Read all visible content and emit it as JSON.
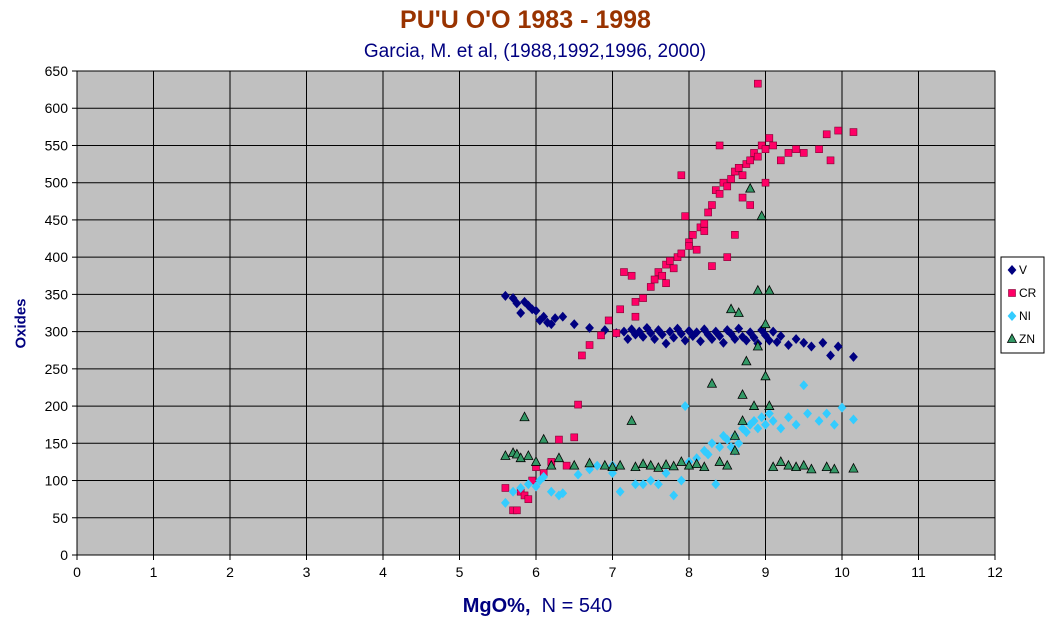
{
  "chart_data": {
    "type": "scatter",
    "title": "PU'U O'O 1983 - 1998",
    "subtitle": "Garcia, M. et al, (1988,1992,1996, 2000)",
    "xlabel_main": "MgO%,",
    "xlabel_note": "N = 540",
    "ylabel": "Oxides",
    "xlim": [
      0,
      12
    ],
    "ylim": [
      0,
      650
    ],
    "x_ticks": [
      0,
      1,
      2,
      3,
      4,
      5,
      6,
      7,
      8,
      9,
      10,
      11,
      12
    ],
    "y_ticks": [
      0,
      50,
      100,
      150,
      200,
      250,
      300,
      350,
      400,
      450,
      500,
      550,
      600,
      650
    ],
    "grid": true,
    "plot_background": "#c0c0c0",
    "legend_position": "right",
    "series": [
      {
        "name": "V",
        "marker": "diamond",
        "color": "#000080",
        "points": [
          [
            5.6,
            348
          ],
          [
            5.7,
            345
          ],
          [
            5.75,
            338
          ],
          [
            5.8,
            325
          ],
          [
            5.85,
            340
          ],
          [
            5.9,
            335
          ],
          [
            5.95,
            330
          ],
          [
            6.0,
            328
          ],
          [
            6.05,
            315
          ],
          [
            6.1,
            320
          ],
          [
            6.15,
            312
          ],
          [
            6.2,
            310
          ],
          [
            6.25,
            318
          ],
          [
            6.35,
            320
          ],
          [
            6.5,
            310
          ],
          [
            6.7,
            305
          ],
          [
            6.9,
            302
          ],
          [
            7.05,
            298
          ],
          [
            7.15,
            300
          ],
          [
            7.2,
            290
          ],
          [
            7.25,
            303
          ],
          [
            7.3,
            296
          ],
          [
            7.35,
            300
          ],
          [
            7.4,
            293
          ],
          [
            7.45,
            305
          ],
          [
            7.5,
            298
          ],
          [
            7.55,
            290
          ],
          [
            7.6,
            302
          ],
          [
            7.65,
            296
          ],
          [
            7.7,
            284
          ],
          [
            7.75,
            300
          ],
          [
            7.8,
            292
          ],
          [
            7.85,
            304
          ],
          [
            7.9,
            297
          ],
          [
            7.95,
            288
          ],
          [
            8.0,
            301
          ],
          [
            8.05,
            294
          ],
          [
            8.1,
            299
          ],
          [
            8.15,
            287
          ],
          [
            8.2,
            303
          ],
          [
            8.25,
            296
          ],
          [
            8.3,
            290
          ],
          [
            8.35,
            300
          ],
          [
            8.4,
            294
          ],
          [
            8.45,
            285
          ],
          [
            8.5,
            302
          ],
          [
            8.55,
            297
          ],
          [
            8.6,
            290
          ],
          [
            8.65,
            304
          ],
          [
            8.7,
            293
          ],
          [
            8.75,
            288
          ],
          [
            8.8,
            299
          ],
          [
            8.85,
            292
          ],
          [
            8.9,
            284
          ],
          [
            8.95,
            302
          ],
          [
            9.0,
            295
          ],
          [
            9.05,
            288
          ],
          [
            9.1,
            300
          ],
          [
            9.15,
            286
          ],
          [
            9.2,
            294
          ],
          [
            9.3,
            282
          ],
          [
            9.4,
            290
          ],
          [
            9.5,
            285
          ],
          [
            9.6,
            280
          ],
          [
            9.75,
            285
          ],
          [
            9.85,
            268
          ],
          [
            9.95,
            280
          ],
          [
            10.15,
            266
          ]
        ]
      },
      {
        "name": "CR",
        "marker": "square",
        "color": "#ff0066",
        "points": [
          [
            5.6,
            90
          ],
          [
            5.7,
            60
          ],
          [
            5.75,
            60
          ],
          [
            5.8,
            85
          ],
          [
            5.85,
            80
          ],
          [
            5.9,
            75
          ],
          [
            5.95,
            100
          ],
          [
            6.0,
            118
          ],
          [
            6.1,
            110
          ],
          [
            6.2,
            125
          ],
          [
            6.3,
            155
          ],
          [
            6.4,
            120
          ],
          [
            6.5,
            158
          ],
          [
            6.55,
            202
          ],
          [
            6.6,
            268
          ],
          [
            6.7,
            282
          ],
          [
            6.85,
            295
          ],
          [
            6.95,
            315
          ],
          [
            7.05,
            298
          ],
          [
            7.1,
            330
          ],
          [
            7.15,
            380
          ],
          [
            7.25,
            375
          ],
          [
            7.3,
            340
          ],
          [
            7.4,
            345
          ],
          [
            7.5,
            360
          ],
          [
            7.55,
            370
          ],
          [
            7.6,
            380
          ],
          [
            7.65,
            375
          ],
          [
            7.7,
            390
          ],
          [
            7.75,
            395
          ],
          [
            7.8,
            385
          ],
          [
            7.85,
            400
          ],
          [
            7.9,
            405
          ],
          [
            7.95,
            455
          ],
          [
            7.9,
            510
          ],
          [
            8.0,
            420
          ],
          [
            8.05,
            430
          ],
          [
            8.1,
            410
          ],
          [
            8.15,
            440
          ],
          [
            8.2,
            445
          ],
          [
            8.25,
            460
          ],
          [
            8.3,
            470
          ],
          [
            8.35,
            490
          ],
          [
            8.4,
            485
          ],
          [
            8.45,
            500
          ],
          [
            8.5,
            495
          ],
          [
            8.55,
            505
          ],
          [
            8.6,
            515
          ],
          [
            8.65,
            520
          ],
          [
            8.7,
            510
          ],
          [
            8.75,
            525
          ],
          [
            8.8,
            530
          ],
          [
            8.85,
            540
          ],
          [
            8.9,
            535
          ],
          [
            8.95,
            550
          ],
          [
            9.0,
            545
          ],
          [
            9.05,
            560
          ],
          [
            8.9,
            633
          ],
          [
            9.1,
            550
          ],
          [
            9.2,
            530
          ],
          [
            9.3,
            540
          ],
          [
            9.4,
            545
          ],
          [
            9.5,
            540
          ],
          [
            9.7,
            545
          ],
          [
            9.8,
            565
          ],
          [
            9.85,
            530
          ],
          [
            9.95,
            570
          ],
          [
            10.15,
            568
          ],
          [
            8.3,
            388
          ],
          [
            8.4,
            550
          ],
          [
            8.6,
            430
          ],
          [
            8.5,
            400
          ],
          [
            7.7,
            365
          ],
          [
            7.3,
            320
          ],
          [
            8.0,
            415
          ],
          [
            8.2,
            435
          ],
          [
            8.7,
            480
          ],
          [
            8.8,
            470
          ],
          [
            9.0,
            500
          ]
        ]
      },
      {
        "name": "NI",
        "marker": "diamond",
        "color": "#33ccff",
        "points": [
          [
            5.6,
            70
          ],
          [
            5.7,
            85
          ],
          [
            5.8,
            90
          ],
          [
            5.9,
            95
          ],
          [
            6.0,
            92
          ],
          [
            6.05,
            100
          ],
          [
            6.1,
            105
          ],
          [
            6.2,
            85
          ],
          [
            6.3,
            80
          ],
          [
            6.35,
            83
          ],
          [
            6.55,
            108
          ],
          [
            6.7,
            115
          ],
          [
            6.8,
            120
          ],
          [
            7.0,
            120
          ],
          [
            7.1,
            85
          ],
          [
            7.3,
            95
          ],
          [
            7.5,
            100
          ],
          [
            7.6,
            95
          ],
          [
            7.7,
            110
          ],
          [
            7.8,
            80
          ],
          [
            7.9,
            100
          ],
          [
            7.95,
            200
          ],
          [
            8.0,
            125
          ],
          [
            8.1,
            130
          ],
          [
            8.2,
            140
          ],
          [
            8.3,
            150
          ],
          [
            8.35,
            95
          ],
          [
            8.4,
            145
          ],
          [
            8.45,
            160
          ],
          [
            8.5,
            155
          ],
          [
            8.55,
            145
          ],
          [
            8.6,
            160
          ],
          [
            8.65,
            150
          ],
          [
            8.7,
            170
          ],
          [
            8.75,
            165
          ],
          [
            8.8,
            175
          ],
          [
            8.85,
            180
          ],
          [
            8.9,
            170
          ],
          [
            8.95,
            185
          ],
          [
            9.0,
            175
          ],
          [
            9.05,
            190
          ],
          [
            9.1,
            180
          ],
          [
            9.2,
            170
          ],
          [
            9.3,
            185
          ],
          [
            9.4,
            175
          ],
          [
            9.5,
            228
          ],
          [
            9.55,
            190
          ],
          [
            9.7,
            180
          ],
          [
            9.8,
            190
          ],
          [
            9.9,
            175
          ],
          [
            10.0,
            198
          ],
          [
            10.15,
            182
          ],
          [
            7.0,
            110
          ],
          [
            7.4,
            95
          ],
          [
            8.25,
            135
          ],
          [
            8.6,
            140
          ]
        ]
      },
      {
        "name": "ZN",
        "marker": "triangle",
        "color": "#339966",
        "points": [
          [
            5.6,
            133
          ],
          [
            5.7,
            137
          ],
          [
            5.75,
            135
          ],
          [
            5.8,
            130
          ],
          [
            5.85,
            185
          ],
          [
            5.9,
            133
          ],
          [
            6.0,
            125
          ],
          [
            6.1,
            155
          ],
          [
            6.2,
            120
          ],
          [
            6.3,
            130
          ],
          [
            6.5,
            120
          ],
          [
            6.7,
            123
          ],
          [
            6.9,
            120
          ],
          [
            7.0,
            118
          ],
          [
            7.1,
            120
          ],
          [
            7.25,
            180
          ],
          [
            7.3,
            118
          ],
          [
            7.4,
            122
          ],
          [
            7.5,
            120
          ],
          [
            7.6,
            117
          ],
          [
            7.7,
            121
          ],
          [
            7.8,
            119
          ],
          [
            7.9,
            125
          ],
          [
            8.0,
            120
          ],
          [
            8.1,
            122
          ],
          [
            8.2,
            118
          ],
          [
            8.3,
            230
          ],
          [
            8.4,
            125
          ],
          [
            8.5,
            120
          ],
          [
            8.55,
            330
          ],
          [
            8.6,
            160
          ],
          [
            8.7,
            215
          ],
          [
            8.75,
            260
          ],
          [
            8.8,
            492
          ],
          [
            8.85,
            200
          ],
          [
            8.9,
            355
          ],
          [
            8.95,
            455
          ],
          [
            9.0,
            310
          ],
          [
            9.05,
            200
          ],
          [
            9.1,
            118
          ],
          [
            9.2,
            125
          ],
          [
            9.3,
            120
          ],
          [
            9.4,
            118
          ],
          [
            9.5,
            120
          ],
          [
            9.6,
            115
          ],
          [
            9.8,
            118
          ],
          [
            9.9,
            115
          ],
          [
            10.15,
            116
          ],
          [
            8.65,
            325
          ],
          [
            8.9,
            280
          ],
          [
            9.0,
            240
          ],
          [
            9.05,
            355
          ],
          [
            8.7,
            180
          ],
          [
            8.6,
            140
          ]
        ]
      }
    ]
  }
}
